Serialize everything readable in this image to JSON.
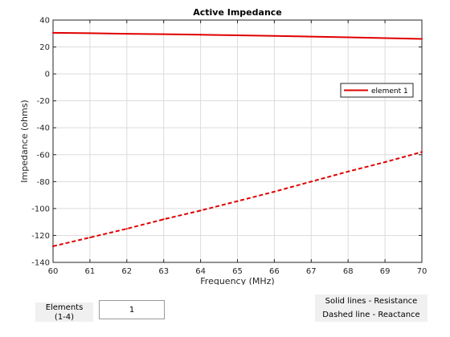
{
  "chart_data": {
    "type": "line",
    "title": "Active Impedance",
    "xlabel": "Frequency (MHz)",
    "ylabel": "Impedance (ohms)",
    "xlim": [
      60,
      70
    ],
    "ylim": [
      -140,
      40
    ],
    "xticks": [
      60,
      61,
      62,
      63,
      64,
      65,
      66,
      67,
      68,
      69,
      70
    ],
    "yticks": [
      -140,
      -120,
      -100,
      -80,
      -60,
      -40,
      -20,
      0,
      20,
      40
    ],
    "grid": true,
    "legend_position": "right",
    "series": [
      {
        "name": "element 1",
        "kind": "resistance",
        "line_style": "solid",
        "color": "#e00000",
        "x": [
          60,
          61,
          62,
          63,
          64,
          65,
          66,
          67,
          68,
          69,
          70
        ],
        "y": [
          30.5,
          30.2,
          29.8,
          29.5,
          29.1,
          28.7,
          28.2,
          27.7,
          27.2,
          26.6,
          26.0
        ]
      },
      {
        "name": "",
        "kind": "reactance",
        "line_style": "dashed",
        "color": "#e00000",
        "x": [
          60,
          61,
          62,
          63,
          64,
          65,
          66,
          67,
          68,
          69,
          70
        ],
        "y": [
          -128,
          -121.5,
          -115,
          -108,
          -101.5,
          -94.5,
          -87.5,
          -80,
          -72.5,
          -65.5,
          -58
        ]
      }
    ]
  },
  "controls": {
    "elements_label": "Elements\n(1-4)",
    "elements_value": "1",
    "solid_note": "Solid lines - Resistance",
    "dashed_note": "Dashed line - Reactance"
  }
}
